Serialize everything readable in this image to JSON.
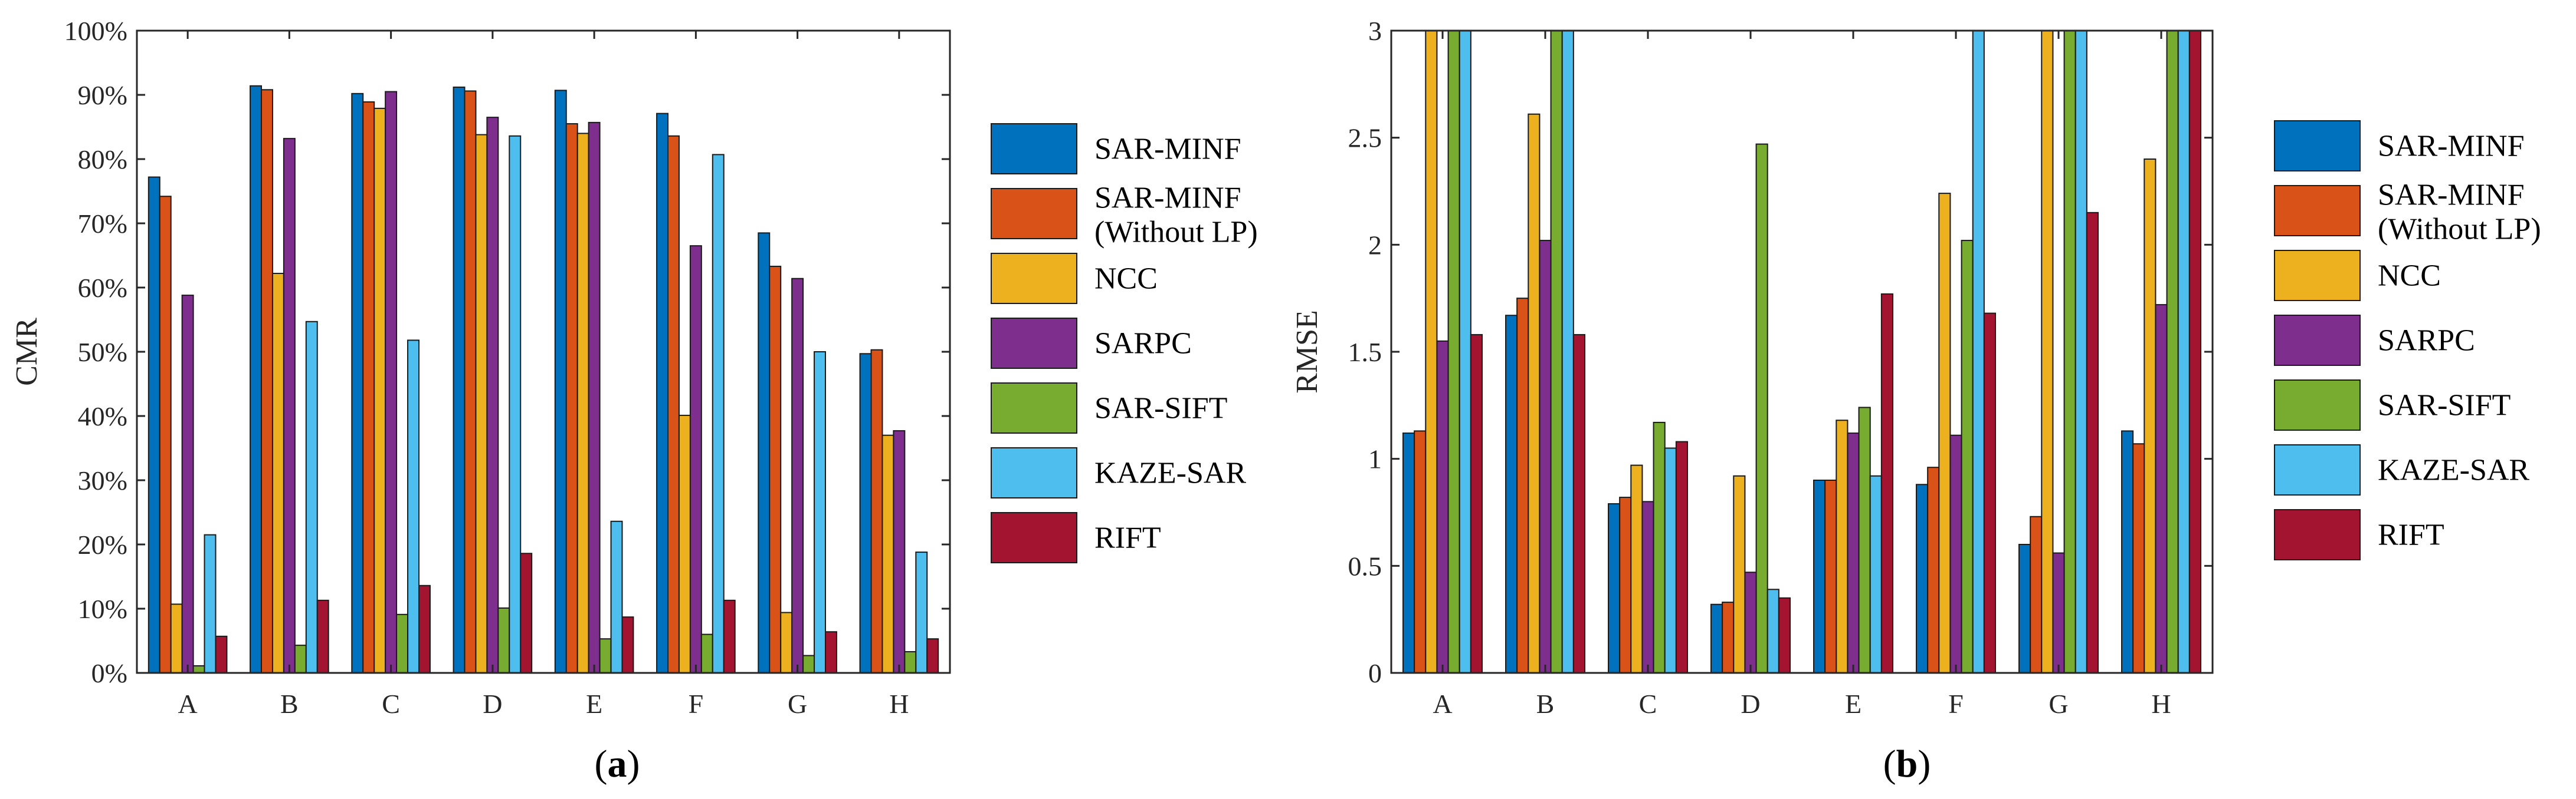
{
  "chart_data": [
    {
      "type": "bar",
      "panel_id": "a",
      "caption_letter": "a",
      "ylabel": "CMR",
      "xlabel": "",
      "ylim": [
        0,
        100
      ],
      "y_ticks": [
        "0%",
        "10%",
        "20%",
        "30%",
        "40%",
        "50%",
        "60%",
        "70%",
        "80%",
        "90%",
        "100%"
      ],
      "y_tick_values": [
        0,
        10,
        20,
        30,
        40,
        50,
        60,
        70,
        80,
        90,
        100
      ],
      "categories": [
        "A",
        "B",
        "C",
        "D",
        "E",
        "F",
        "G",
        "H"
      ],
      "legend_placement": "right",
      "series": [
        {
          "name": "SAR-MINF",
          "color": "#0072BD",
          "values": [
            77.2,
            91.4,
            90.2,
            91.2,
            90.7,
            87.1,
            68.5,
            49.7
          ]
        },
        {
          "name": "SAR-MINF (Without LP)",
          "color": "#D95319",
          "values": [
            74.2,
            90.8,
            88.9,
            90.6,
            85.5,
            83.6,
            63.3,
            50.3
          ]
        },
        {
          "name": "NCC",
          "color": "#EDB120",
          "values": [
            10.7,
            62.2,
            87.9,
            83.8,
            84.0,
            40.1,
            9.4,
            37.0
          ]
        },
        {
          "name": "SARPC",
          "color": "#7E2F8E",
          "values": [
            58.8,
            83.2,
            90.5,
            86.5,
            85.7,
            66.5,
            61.4,
            37.7
          ]
        },
        {
          "name": "SAR-SIFT",
          "color": "#77AC30",
          "values": [
            1.1,
            4.3,
            9.1,
            10.1,
            5.3,
            6.0,
            2.7,
            3.3
          ]
        },
        {
          "name": "KAZE-SAR",
          "color": "#4DBEEE",
          "values": [
            21.5,
            54.7,
            51.8,
            83.6,
            23.6,
            80.7,
            50.0,
            18.8
          ]
        },
        {
          "name": "RIFT",
          "color": "#A2142F",
          "values": [
            5.7,
            11.3,
            13.6,
            18.6,
            8.7,
            11.3,
            6.4,
            5.3
          ]
        }
      ]
    },
    {
      "type": "bar",
      "panel_id": "b",
      "caption_letter": "b",
      "ylabel": "RMSE",
      "xlabel": "",
      "ylim": [
        0,
        3
      ],
      "y_ticks": [
        "0",
        "0.5",
        "1",
        "1.5",
        "2",
        "2.5",
        "3"
      ],
      "y_tick_values": [
        0,
        0.5,
        1,
        1.5,
        2,
        2.5,
        3
      ],
      "categories": [
        "A",
        "B",
        "C",
        "D",
        "E",
        "F",
        "G",
        "H"
      ],
      "legend_placement": "right",
      "series": [
        {
          "name": "SAR-MINF",
          "color": "#0072BD",
          "values": [
            1.12,
            1.67,
            0.79,
            0.32,
            0.9,
            0.88,
            0.6,
            1.13
          ]
        },
        {
          "name": "SAR-MINF (Without LP)",
          "color": "#D95319",
          "values": [
            1.13,
            1.75,
            0.82,
            0.33,
            0.9,
            0.96,
            0.73,
            1.07
          ]
        },
        {
          "name": "NCC",
          "color": "#EDB120",
          "values": [
            3.0,
            2.61,
            0.97,
            0.92,
            1.18,
            2.24,
            3.0,
            2.4
          ]
        },
        {
          "name": "SARPC",
          "color": "#7E2F8E",
          "values": [
            1.55,
            2.02,
            0.8,
            0.47,
            1.12,
            1.11,
            0.56,
            1.72
          ]
        },
        {
          "name": "SAR-SIFT",
          "color": "#77AC30",
          "values": [
            3.0,
            3.0,
            1.17,
            2.47,
            1.24,
            2.02,
            3.0,
            3.0
          ]
        },
        {
          "name": "KAZE-SAR",
          "color": "#4DBEEE",
          "values": [
            3.0,
            3.0,
            1.05,
            0.39,
            0.92,
            3.0,
            3.0,
            3.0
          ]
        },
        {
          "name": "RIFT",
          "color": "#A2142F",
          "values": [
            1.58,
            1.58,
            1.08,
            0.35,
            1.77,
            1.68,
            2.15,
            3.0
          ]
        }
      ]
    }
  ]
}
